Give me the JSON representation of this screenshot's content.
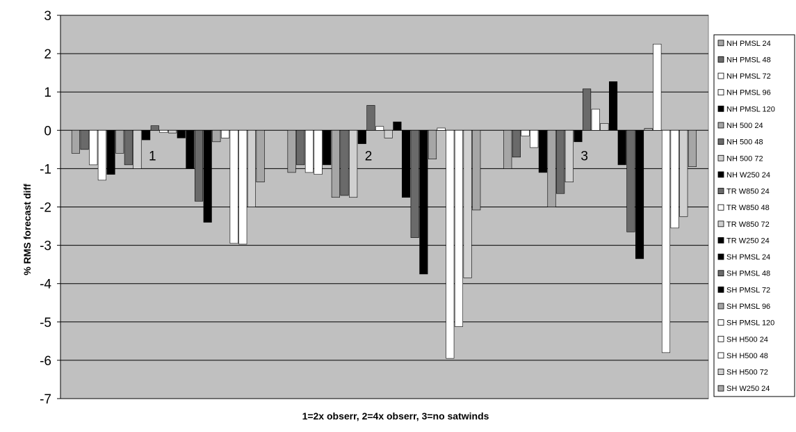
{
  "chart_data": {
    "type": "bar",
    "title": "",
    "xlabel": "1=2x obserr, 2=4x obserr, 3=no satwinds",
    "ylabel": "% RMS forecast diff",
    "ylim": [
      -7,
      3
    ],
    "yticks": [
      3,
      2,
      1,
      0,
      -1,
      -2,
      -3,
      -4,
      -5,
      -6,
      -7
    ],
    "grid": true,
    "legend_position": "right",
    "categories": [
      "1",
      "2",
      "3"
    ],
    "series": [
      {
        "name": "NH PMSL 24",
        "color": "#a6a6a6",
        "values": [
          -0.6,
          -1.1,
          -1.0
        ]
      },
      {
        "name": "NH PMSL 48",
        "color": "#6a6a6a",
        "values": [
          -0.5,
          -0.9,
          -0.7
        ]
      },
      {
        "name": "NH PMSL 72",
        "color": "#ffffff",
        "values": [
          -0.9,
          -1.1,
          -0.15
        ]
      },
      {
        "name": "NH PMSL 96",
        "color": "#ffffff",
        "values": [
          -1.3,
          -1.15,
          -0.45
        ]
      },
      {
        "name": "NH PMSL 120",
        "color": "#000000",
        "values": [
          -1.15,
          -0.9,
          -1.1
        ]
      },
      {
        "name": "NH 500 24",
        "color": "#a6a6a6",
        "values": [
          -0.6,
          -1.75,
          -2.0
        ]
      },
      {
        "name": "NH 500 48",
        "color": "#6a6a6a",
        "values": [
          -0.9,
          -1.7,
          -1.65
        ]
      },
      {
        "name": "NH 500 72",
        "color": "#d0d0d0",
        "values": [
          -1.0,
          -1.75,
          -1.35
        ]
      },
      {
        "name": "NH W250 24",
        "color": "#000000",
        "values": [
          -0.25,
          -0.35,
          -0.3
        ]
      },
      {
        "name": "TR W850 24",
        "color": "#6a6a6a",
        "values": [
          0.12,
          0.65,
          1.08
        ]
      },
      {
        "name": "TR W850 48",
        "color": "#ffffff",
        "values": [
          -0.06,
          0.1,
          0.55
        ]
      },
      {
        "name": "TR W850 72",
        "color": "#d0d0d0",
        "values": [
          -0.07,
          -0.2,
          0.18
        ]
      },
      {
        "name": "TR W250 24",
        "color": "#000000",
        "values": [
          -0.2,
          0.22,
          1.27
        ]
      },
      {
        "name": "SH PMSL 24",
        "color": "#000000",
        "values": [
          -1.0,
          -1.75,
          -0.9
        ]
      },
      {
        "name": "SH PMSL 48",
        "color": "#6a6a6a",
        "values": [
          -1.85,
          -2.8,
          -2.65
        ]
      },
      {
        "name": "SH PMSL 72",
        "color": "#000000",
        "values": [
          -2.4,
          -3.75,
          -3.35
        ]
      },
      {
        "name": "SH PMSL 96",
        "color": "#a6a6a6",
        "values": [
          -0.3,
          -0.75,
          0.05
        ]
      },
      {
        "name": "SH PMSL 120",
        "color": "#ffffff",
        "values": [
          -0.2,
          0.06,
          2.25
        ]
      },
      {
        "name": "SH H500 24",
        "color": "#ffffff",
        "values": [
          -2.95,
          -5.95,
          -5.8
        ]
      },
      {
        "name": "SH H500 48",
        "color": "#ffffff",
        "values": [
          -2.97,
          -5.12,
          -2.55
        ]
      },
      {
        "name": "SH H500 72",
        "color": "#d0d0d0",
        "values": [
          -2.0,
          -3.85,
          -2.25
        ]
      },
      {
        "name": "SH W250 24",
        "color": "#a6a6a6",
        "values": [
          -1.35,
          -2.08,
          -0.95
        ]
      }
    ]
  },
  "colors": {
    "plot_background": "#c0c0c0",
    "gridline": "#000000",
    "bar_border": "#000000"
  }
}
